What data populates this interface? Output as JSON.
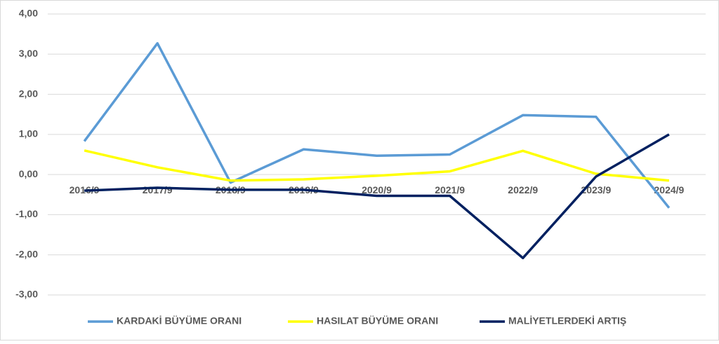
{
  "chart_data": {
    "type": "line",
    "categories": [
      "2016/9",
      "2017/9",
      "2018/9",
      "2019/9",
      "2020/9",
      "2021/9",
      "2022/9",
      "2023/9",
      "2024/9"
    ],
    "series": [
      {
        "name": "KARDAKİ BÜYÜME ORANI",
        "color": "#5b9bd5",
        "values": [
          0.83,
          3.27,
          -0.2,
          0.63,
          0.47,
          0.5,
          1.48,
          1.44,
          -0.83
        ]
      },
      {
        "name": "HASILAT BÜYÜME ORANI",
        "color": "#ffff00",
        "values": [
          0.6,
          0.18,
          -0.15,
          -0.12,
          -0.03,
          0.08,
          0.59,
          0.02,
          -0.15
        ]
      },
      {
        "name": "MALİYETLERDEKİ ARTIŞ",
        "color": "#002060",
        "values": [
          -0.4,
          -0.33,
          -0.38,
          -0.38,
          -0.53,
          -0.53,
          -2.08,
          -0.05,
          1.0
        ]
      }
    ],
    "ylim": [
      -3,
      4
    ],
    "yticks": [
      {
        "value": -3,
        "label": "-3,00"
      },
      {
        "value": -2,
        "label": "-2,00"
      },
      {
        "value": -1,
        "label": "-1,00"
      },
      {
        "value": 0,
        "label": "0,00"
      },
      {
        "value": 1,
        "label": "1,00"
      },
      {
        "value": 2,
        "label": "2,00"
      },
      {
        "value": 3,
        "label": "3,00"
      },
      {
        "value": 4,
        "label": "4,00"
      }
    ],
    "grid": true,
    "legend": "bottom"
  }
}
